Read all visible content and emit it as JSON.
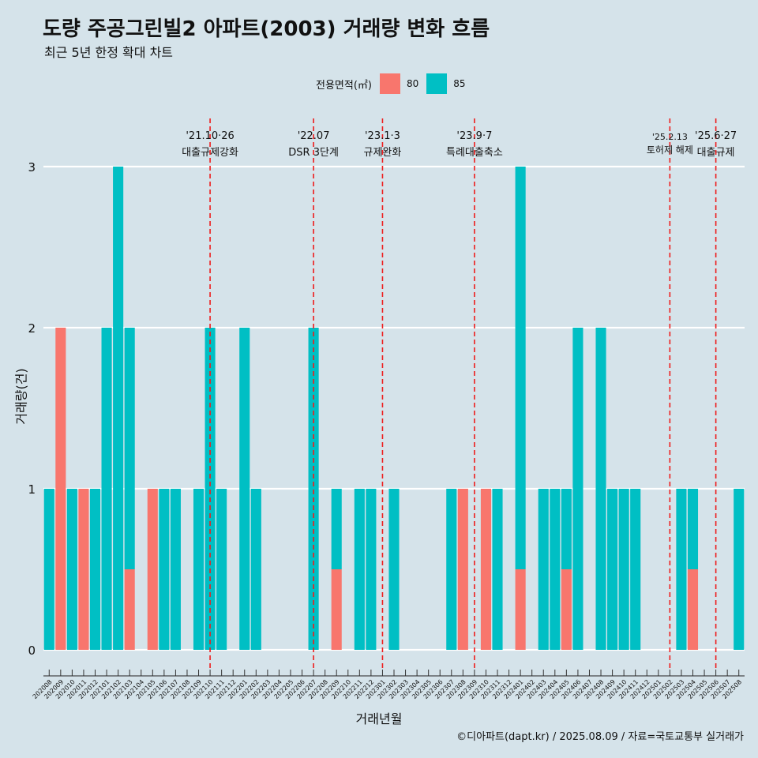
{
  "chart_data": {
    "type": "bar",
    "stacked": true,
    "title": "도량 주공그린빌2 아파트(2003) 거래량 변화 흐름",
    "subtitle": "최근 5년 한정 확대 차트",
    "xlabel": "거래년월",
    "ylabel": "거래량(건)",
    "caption": "©디아파트(dapt.kr) / 2025.08.09 / 자료=국토교통부 실거래가",
    "legend": {
      "title": "전용면적(㎡)",
      "position": "top"
    },
    "ylim": [
      0,
      3
    ],
    "yticks": [
      0,
      1,
      2,
      3
    ],
    "grid": true,
    "categories": [
      "202008",
      "202009",
      "202010",
      "202011",
      "202012",
      "202101",
      "202102",
      "202103",
      "202104",
      "202105",
      "202106",
      "202107",
      "202108",
      "202109",
      "202110",
      "202111",
      "202112",
      "202201",
      "202202",
      "202203",
      "202204",
      "202205",
      "202206",
      "202207",
      "202208",
      "202209",
      "202210",
      "202211",
      "202212",
      "202301",
      "202302",
      "202303",
      "202304",
      "202305",
      "202306",
      "202307",
      "202308",
      "202309",
      "202310",
      "202311",
      "202312",
      "202401",
      "202402",
      "202403",
      "202404",
      "202405",
      "202406",
      "202407",
      "202408",
      "202409",
      "202410",
      "202411",
      "202412",
      "202501",
      "202502",
      "202503",
      "202504",
      "202505",
      "202506",
      "202507",
      "202508"
    ],
    "series": [
      {
        "name": "80",
        "color": "#f8766d",
        "values": [
          0,
          2,
          0,
          1,
          0,
          0,
          0,
          0.5,
          0,
          1,
          0,
          0,
          0,
          0,
          0,
          0,
          0,
          0,
          0,
          0,
          0,
          0,
          0,
          0,
          0,
          0.5,
          0,
          0,
          0,
          0,
          0,
          0,
          0,
          0,
          0,
          0,
          1,
          0,
          1,
          0,
          0,
          0.5,
          0,
          0,
          0,
          0.5,
          0,
          0,
          0,
          0,
          0,
          0,
          0,
          0,
          0,
          0,
          0.5,
          0,
          0,
          0,
          0
        ]
      },
      {
        "name": "85",
        "color": "#00bfc4",
        "values": [
          1,
          0,
          1,
          0,
          1,
          2,
          3,
          1.5,
          0,
          0,
          1,
          1,
          0,
          1,
          2,
          1,
          0,
          2,
          1,
          0,
          0,
          0,
          0,
          2,
          0,
          0.5,
          0,
          1,
          1,
          0,
          1,
          0,
          0,
          0,
          0,
          1,
          0,
          0,
          0,
          1,
          0,
          2.5,
          0,
          1,
          1,
          0.5,
          2,
          0,
          2,
          1,
          1,
          1,
          0,
          0,
          0,
          1,
          0.5,
          0,
          0,
          0,
          1
        ]
      }
    ],
    "events": [
      {
        "x": "202110",
        "date": "'21.10·26",
        "label": "대출규제강화"
      },
      {
        "x": "202207",
        "date": "'22.07",
        "label": "DSR 3단계"
      },
      {
        "x": "202301",
        "date": "'23.1·3",
        "label": "규제완화"
      },
      {
        "x": "202309",
        "date": "'23.9·7",
        "label": "특례대출축소"
      },
      {
        "x": "202502",
        "date": "'25.2.13",
        "label": "토허제 해제"
      },
      {
        "x": "202506",
        "date": "'25.6·27",
        "label": "대출규제"
      }
    ]
  }
}
